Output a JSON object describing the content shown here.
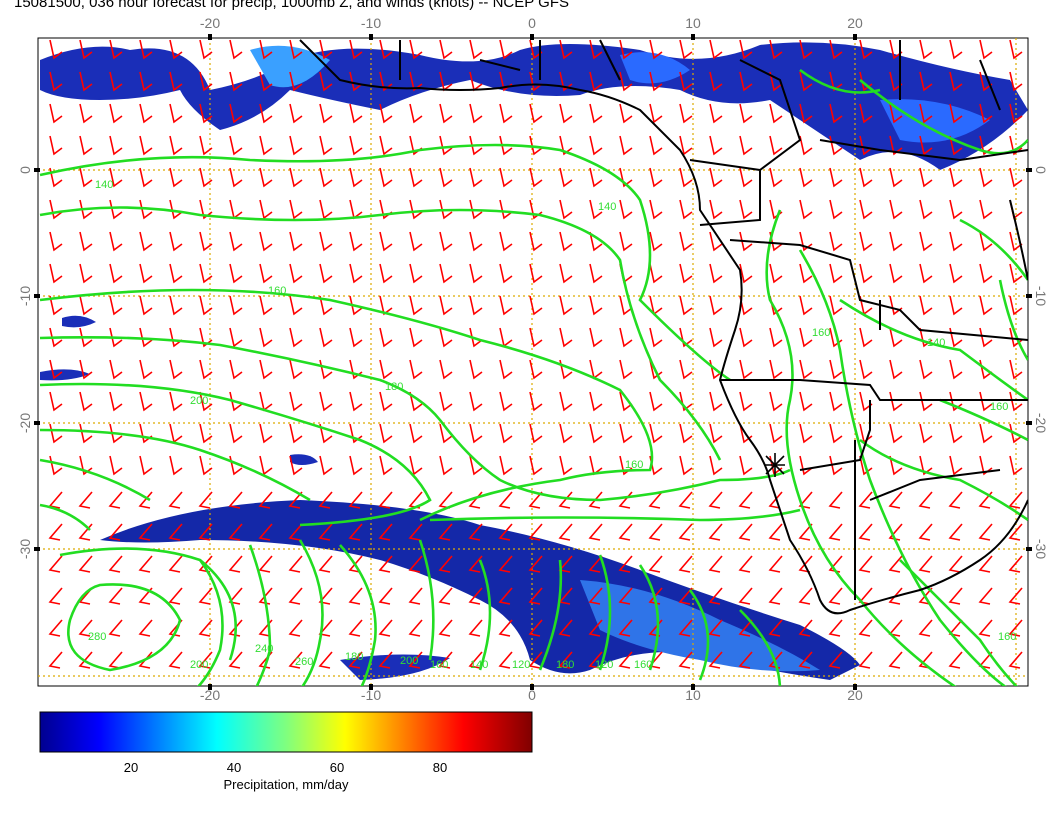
{
  "title": "15081500, 036 hour forecast for precip, 1000mb Z, and winds (knots) -- NCEP GFS",
  "axes": {
    "x_ticks": [
      "-20",
      "-10",
      "0",
      "10",
      "20"
    ],
    "y_ticks": [
      "0",
      "-10",
      "-20",
      "-30"
    ]
  },
  "contour_labels": [
    "140",
    "160",
    "180",
    "200",
    "140",
    "160",
    "200",
    "240",
    "280",
    "260",
    "180",
    "200",
    "160",
    "140",
    "120",
    "180",
    "120",
    "160",
    "160",
    "140",
    "160",
    "160"
  ],
  "colorbar": {
    "ticks": [
      "20",
      "40",
      "60",
      "80"
    ],
    "label": "Precipitation, mm/day"
  },
  "colors": {
    "contour": "#22dd22",
    "wind_barb": "#ff0000",
    "grid": "#ddaa00",
    "coast": "#000000"
  }
}
